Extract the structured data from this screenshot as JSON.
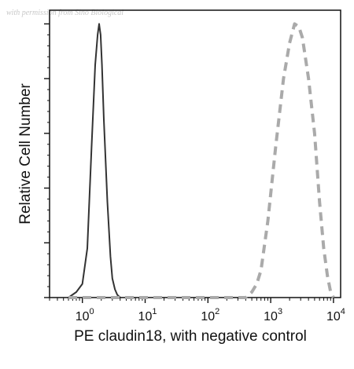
{
  "watermark": "with permission from Sino Biological",
  "chart_data": {
    "type": "histogram",
    "xlabel": "PE claudin18, with negative control",
    "ylabel": "Relative Cell Number",
    "xscale": "log",
    "xlim": [
      0.3,
      13000
    ],
    "ylim": [
      0,
      1.05
    ],
    "grid": false,
    "legend": "none",
    "xticks": [
      {
        "base": "10",
        "exp": "0",
        "value": 1
      },
      {
        "base": "10",
        "exp": "1",
        "value": 10
      },
      {
        "base": "10",
        "exp": "2",
        "value": 100
      },
      {
        "base": "10",
        "exp": "3",
        "value": 1000
      },
      {
        "base": "10",
        "exp": "4",
        "value": 10000
      }
    ],
    "yticks": [
      0,
      0.2,
      0.4,
      0.6,
      0.8,
      1.0
    ],
    "series": [
      {
        "style": "solid",
        "color": "#333333",
        "x": [
          0.6,
          0.8,
          1.0,
          1.2,
          1.4,
          1.6,
          1.75,
          1.85,
          1.95,
          2.05,
          2.2,
          2.5,
          2.8,
          3.0,
          3.3,
          3.6,
          4.0
        ],
        "y": [
          0.0,
          0.02,
          0.05,
          0.18,
          0.55,
          0.85,
          0.96,
          1.0,
          0.96,
          0.85,
          0.65,
          0.35,
          0.15,
          0.07,
          0.03,
          0.01,
          0.0
        ]
      },
      {
        "style": "dashed",
        "color": "#aaaaaa",
        "x": [
          0.6,
          10,
          100,
          400,
          500,
          600,
          700,
          900,
          1200,
          1600,
          2000,
          2400,
          2800,
          3200,
          4000,
          5000,
          6000,
          7000,
          8000,
          9000,
          10000
        ],
        "y": [
          0.0,
          0.0,
          0.0,
          0.0,
          0.02,
          0.05,
          0.1,
          0.28,
          0.55,
          0.8,
          0.93,
          1.0,
          0.99,
          0.95,
          0.8,
          0.6,
          0.35,
          0.18,
          0.08,
          0.02,
          0.0
        ]
      }
    ]
  }
}
